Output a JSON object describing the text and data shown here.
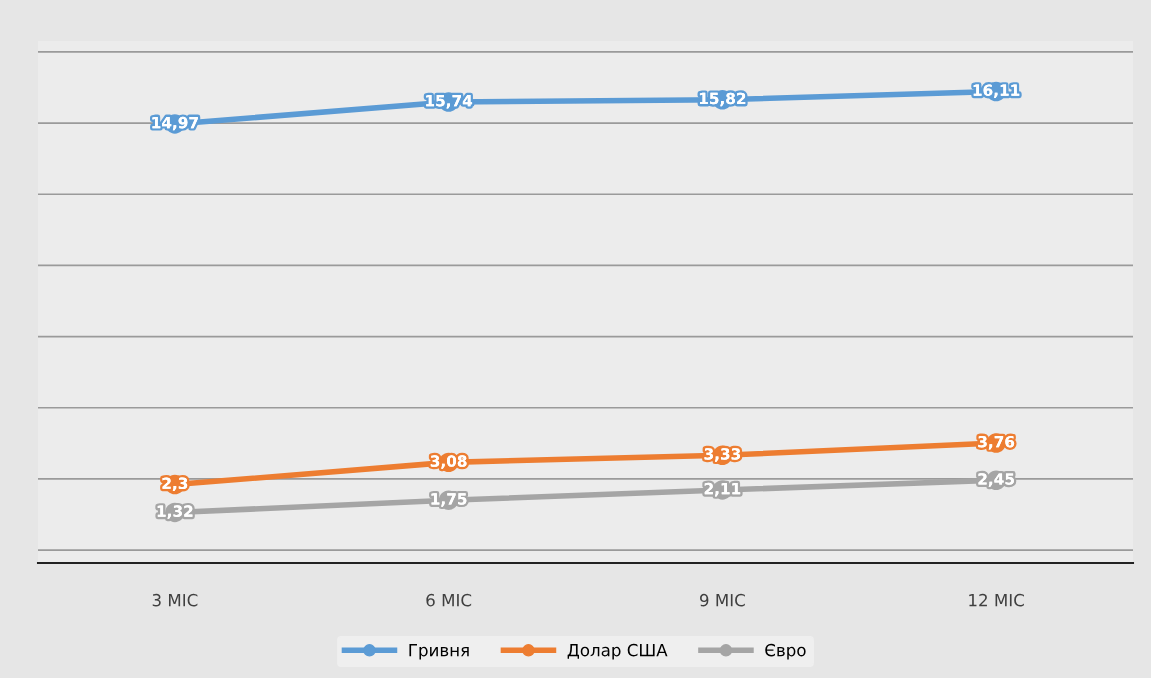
{
  "chart_data": {
    "type": "line",
    "categories": [
      "3 МІС",
      "6 МІС",
      "9 МІС",
      "12 МІС"
    ],
    "series": [
      {
        "name": "Гривня",
        "color": "#5b9bd5",
        "values": [
          14.97,
          15.74,
          15.82,
          16.11
        ],
        "value_labels": [
          "14,97",
          "15,74",
          "15,82",
          "16,11"
        ]
      },
      {
        "name": "Долар США",
        "color": "#ed7d31",
        "values": [
          2.3,
          3.08,
          3.33,
          3.76
        ],
        "value_labels": [
          "2,3",
          "3,08",
          "3,33",
          "3,76"
        ]
      },
      {
        "name": "Євро",
        "color": "#a5a5a5",
        "values": [
          1.32,
          1.75,
          2.11,
          2.45
        ],
        "value_labels": [
          "1,32",
          "1,75",
          "2,11",
          "2,45"
        ]
      }
    ],
    "grid": "y",
    "legend": "bottom",
    "marker": "circle",
    "line_style": "solid",
    "tick_labels": "x"
  }
}
